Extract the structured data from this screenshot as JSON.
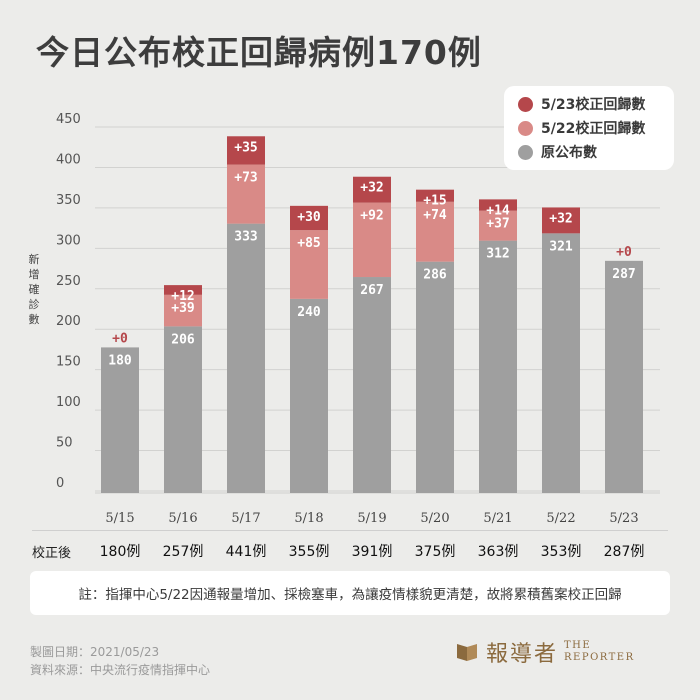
{
  "title": "今日公布校正回歸病例170例",
  "legend": [
    {
      "label": "5/23校正回歸數",
      "color": "#b5474b"
    },
    {
      "label": "5/22校正回歸數",
      "color": "#d98a87"
    },
    {
      "label": "原公布數",
      "color": "#9f9f9f"
    }
  ],
  "corrected_label": "校正後",
  "note": "註：指揮中心5/22因通報量增加、採檢塞車，為讓疫情樣貌更清楚，故將累積舊案校正回歸",
  "footer": {
    "date": "製圖日期：2021/05/23",
    "source": "資料來源：中央流行疫情指揮中心"
  },
  "logo": {
    "cn": "報導者",
    "en_line1": "THE",
    "en_line2": "REPORTER"
  },
  "chart_data": {
    "type": "bar",
    "stacked": true,
    "categories": [
      "5/15",
      "5/16",
      "5/17",
      "5/18",
      "5/19",
      "5/20",
      "5/21",
      "5/22",
      "5/23"
    ],
    "ylabel": "新增確診數",
    "ylim": [
      0,
      450
    ],
    "yticks": [
      0,
      50,
      100,
      150,
      200,
      250,
      300,
      350,
      400,
      450
    ],
    "grid": true,
    "legend_position": "top-right",
    "series": [
      {
        "name": "原公布數",
        "color": "#9f9f9f",
        "values": [
          180,
          206,
          333,
          240,
          267,
          286,
          312,
          321,
          287
        ],
        "labels": [
          "180",
          "206",
          "333",
          "240",
          "267",
          "286",
          "312",
          "321",
          "287"
        ]
      },
      {
        "name": "5/22校正回歸數",
        "color": "#d98a87",
        "values": [
          0,
          39,
          73,
          85,
          92,
          74,
          37,
          0,
          0
        ],
        "labels": [
          "",
          "+39",
          "+73",
          "+85",
          "+92",
          "+74",
          "+37",
          "",
          ""
        ]
      },
      {
        "name": "5/23校正回歸數",
        "color": "#b5474b",
        "values": [
          0,
          12,
          35,
          30,
          32,
          15,
          14,
          32,
          0
        ],
        "labels": [
          "+0",
          "+12",
          "+35",
          "+30",
          "+32",
          "+15",
          "+14",
          "+32",
          "+0"
        ]
      }
    ],
    "corrected_totals": [
      "180例",
      "257例",
      "441例",
      "355例",
      "391例",
      "375例",
      "363例",
      "353例",
      "287例"
    ]
  }
}
